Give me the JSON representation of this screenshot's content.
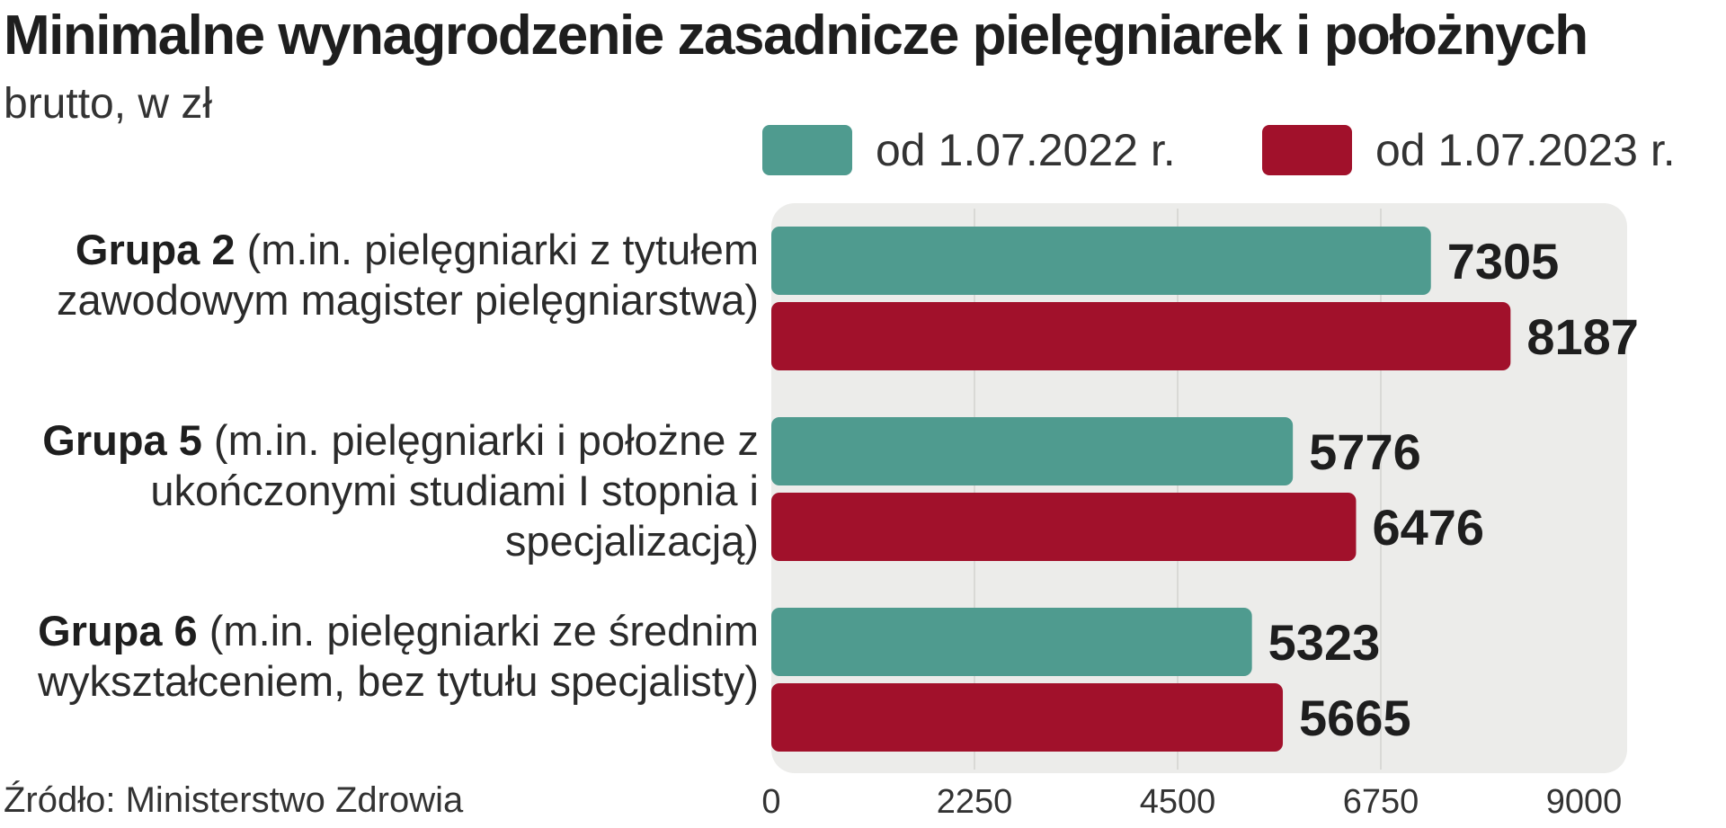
{
  "chart_data": {
    "type": "bar",
    "orientation": "horizontal",
    "title": "Minimalne wynagrodzenie zasadnicze pielęgniarek i położnych",
    "subtitle": "brutto, w zł",
    "categories": [
      {
        "bold": "Grupa 2",
        "rest": " (m.in. pielęgniarki z tytułem zawodowym magister pielęgniarstwa)"
      },
      {
        "bold": "Grupa 5",
        "rest": " (m.in. pielęgniarki i położne z ukończonymi studiami I stopnia i specjalizacją)"
      },
      {
        "bold": "Grupa 6",
        "rest": " (m.in. pielęgniarki ze średnim wykształceniem, bez tytułu specjalisty)"
      }
    ],
    "series": [
      {
        "name": "od 1.07.2022 r.",
        "color": "#4f9b8f",
        "values": [
          7305,
          5776,
          5323
        ]
      },
      {
        "name": "od 1.07.2023 r.",
        "color": "#a1112b",
        "values": [
          8187,
          6476,
          5665
        ]
      }
    ],
    "xlim": [
      0,
      9000
    ],
    "xticks": [
      "0",
      "2250",
      "4500",
      "6750",
      "9000"
    ],
    "grid": true,
    "legend_position": "top-right",
    "source": "Źródło: Ministerstwo Zdrowia"
  }
}
